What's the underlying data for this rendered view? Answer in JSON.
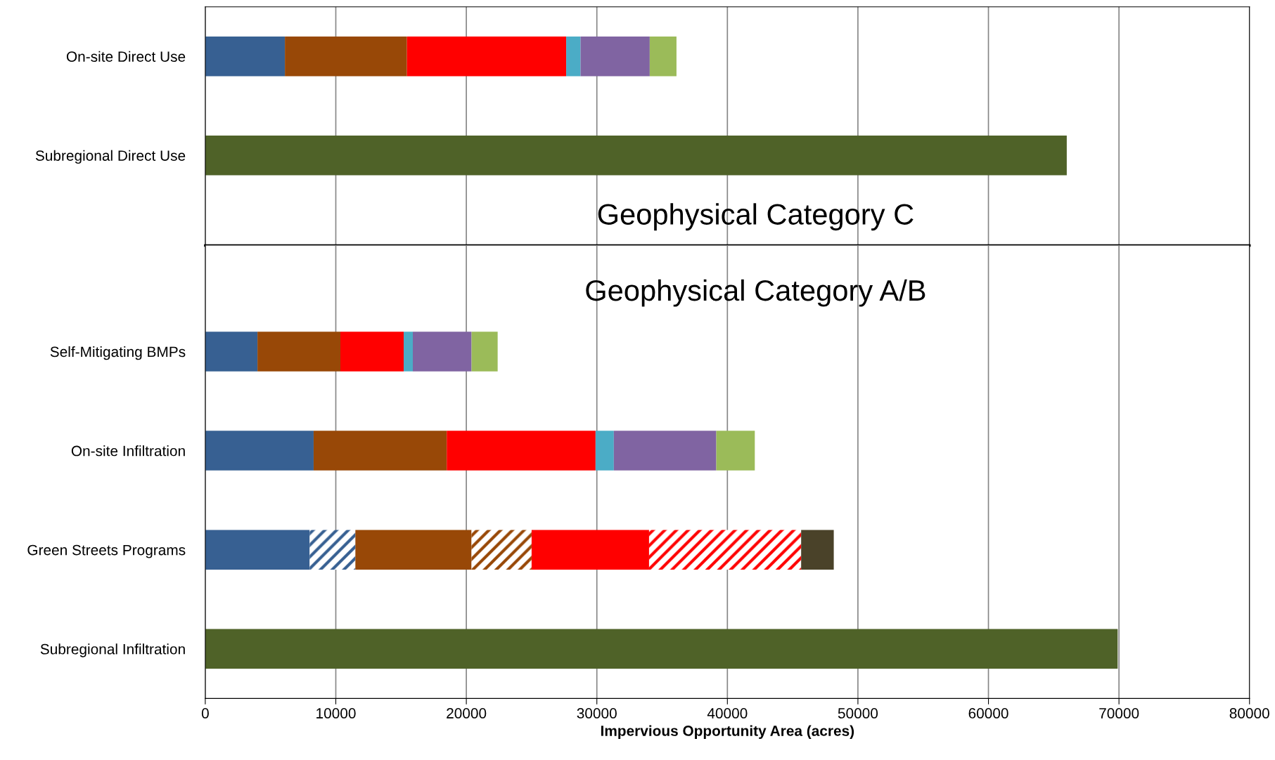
{
  "chart_data": [
    {
      "type": "bar",
      "orientation": "horizontal",
      "stacked": true,
      "categories": [
        "On-site Direct Use",
        "Subregional Direct Use"
      ],
      "series": [
        {
          "color": "#376092",
          "values": [
            6100,
            null
          ]
        },
        {
          "color": "#984807",
          "values": [
            9350,
            null
          ]
        },
        {
          "color": "#ff0000",
          "values": [
            12200,
            null
          ]
        },
        {
          "color": "#4bacc6",
          "values": [
            1100,
            null
          ]
        },
        {
          "color": "#8064a2",
          "values": [
            5300,
            null
          ]
        },
        {
          "color": "#9bbb59",
          "values": [
            2050,
            null
          ]
        },
        {
          "color": "#4f6228",
          "values": [
            null,
            66000
          ]
        }
      ],
      "xlim": [
        0,
        80000
      ],
      "xticks": [
        0,
        10000,
        20000,
        30000,
        40000,
        50000,
        60000,
        70000,
        80000
      ],
      "tick_labels": "y",
      "grid": "x",
      "annotations": [
        "Geophysical Category C"
      ]
    },
    {
      "type": "bar",
      "orientation": "horizontal",
      "stacked": true,
      "xlabel": "Impervious Opportunity Area (acres)",
      "categories": [
        "Self-Mitigating BMPs",
        "On-site Infiltration",
        "Green Streets Programs",
        "Subregional Infiltration"
      ],
      "series": [
        {
          "color": "#376092",
          "values": [
            4000,
            8300,
            8000,
            null
          ]
        },
        {
          "color": "#376092",
          "values": [
            null,
            null,
            3500,
            null
          ]
        },
        {
          "color": "#984807",
          "values": [
            6350,
            10200,
            8900,
            null
          ]
        },
        {
          "color": "#984807",
          "values": [
            null,
            null,
            4600,
            null
          ]
        },
        {
          "color": "#ff0000",
          "values": [
            4850,
            11400,
            9000,
            null
          ]
        },
        {
          "color": "#ff0000",
          "values": [
            null,
            null,
            11650,
            null
          ]
        },
        {
          "color": "#4bacc6",
          "values": [
            700,
            1400,
            null,
            null
          ]
        },
        {
          "color": "#8064a2",
          "values": [
            4500,
            7850,
            null,
            null
          ]
        },
        {
          "color": "#9bbb59",
          "values": [
            2000,
            2950,
            null,
            null
          ]
        },
        {
          "color": "#4a4229",
          "values": [
            null,
            null,
            2500,
            null
          ]
        },
        {
          "color": "#4f6228",
          "values": [
            null,
            null,
            null,
            69900
          ]
        }
      ],
      "xlim": [
        0,
        80000
      ],
      "xticks": [
        0,
        10000,
        20000,
        30000,
        40000,
        50000,
        60000,
        70000,
        80000
      ],
      "grid": "x",
      "annotations": [
        "Geophysical Category A/B"
      ]
    }
  ]
}
